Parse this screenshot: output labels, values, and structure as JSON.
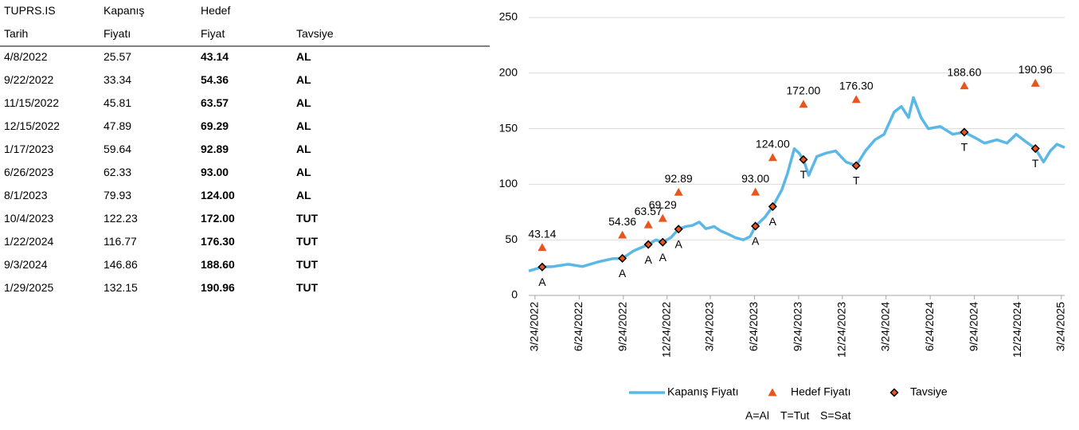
{
  "table": {
    "header_top": [
      "TUPRS.IS",
      "Kapanış",
      "Hedef"
    ],
    "header": [
      "Tarih",
      "Fiyatı",
      "Fiyat",
      "Tavsiye"
    ],
    "rows": [
      [
        "4/8/2022",
        "25.57",
        "43.14",
        "AL"
      ],
      [
        "9/22/2022",
        "33.34",
        "54.36",
        "AL"
      ],
      [
        "11/15/2022",
        "45.81",
        "63.57",
        "AL"
      ],
      [
        "12/15/2022",
        "47.89",
        "69.29",
        "AL"
      ],
      [
        "1/17/2023",
        "59.64",
        "92.89",
        "AL"
      ],
      [
        "6/26/2023",
        "62.33",
        "93.00",
        "AL"
      ],
      [
        "8/1/2023",
        "79.93",
        "124.00",
        "AL"
      ],
      [
        "10/4/2023",
        "122.23",
        "172.00",
        "TUT"
      ],
      [
        "1/22/2024",
        "116.77",
        "176.30",
        "TUT"
      ],
      [
        "9/3/2024",
        "146.86",
        "188.60",
        "TUT"
      ],
      [
        "1/29/2025",
        "132.15",
        "190.96",
        "TUT"
      ]
    ]
  },
  "chart_data": {
    "type": "line",
    "xlim": [
      "3/11/2022",
      "3/31/2025"
    ],
    "xticks": [
      "3/24/2022",
      "6/24/2022",
      "9/24/2022",
      "12/24/2022",
      "3/24/2023",
      "6/24/2023",
      "9/24/2023",
      "12/24/2023",
      "3/24/2024",
      "6/24/2024",
      "9/24/2024",
      "12/24/2024",
      "3/24/2025"
    ],
    "ylim": [
      0,
      250
    ],
    "yticks": [
      0,
      50,
      100,
      150,
      200,
      250
    ],
    "grid": true,
    "legend": "bottom",
    "series": [
      {
        "name": "Kapanış Fiyatı",
        "color": "#5bb8e6",
        "x": [
          "3/11/2022",
          "4/8/2022",
          "5/1/2022",
          "6/1/2022",
          "7/1/2022",
          "8/1/2022",
          "9/1/2022",
          "9/22/2022",
          "10/15/2022",
          "11/15/2022",
          "12/1/2022",
          "12/15/2022",
          "1/1/2023",
          "1/17/2023",
          "2/1/2023",
          "2/15/2023",
          "3/1/2023",
          "3/15/2023",
          "4/1/2023",
          "4/15/2023",
          "5/1/2023",
          "5/15/2023",
          "6/1/2023",
          "6/15/2023",
          "6/26/2023",
          "7/15/2023",
          "8/1/2023",
          "8/20/2023",
          "9/1/2023",
          "9/15/2023",
          "9/25/2023",
          "10/4/2023",
          "10/15/2023",
          "11/1/2023",
          "11/20/2023",
          "12/10/2023",
          "1/1/2024",
          "1/22/2024",
          "2/10/2024",
          "3/1/2024",
          "3/20/2024",
          "4/10/2024",
          "4/25/2024",
          "5/10/2024",
          "5/20/2024",
          "6/5/2024",
          "6/20/2024",
          "7/15/2024",
          "8/10/2024",
          "9/3/2024",
          "9/25/2024",
          "10/15/2024",
          "11/10/2024",
          "12/1/2024",
          "12/20/2024",
          "1/10/2025",
          "1/29/2025",
          "2/15/2025",
          "3/1/2025",
          "3/15/2025",
          "3/31/2025"
        ],
        "values": [
          22,
          25.57,
          26,
          28,
          26,
          30,
          33,
          33.34,
          40,
          45.81,
          50,
          47.89,
          52,
          59.64,
          62,
          63,
          66,
          60,
          62,
          58,
          55,
          52,
          50,
          53,
          62.33,
          70,
          79.93,
          95,
          110,
          132,
          128,
          122.23,
          108,
          125,
          128,
          130,
          120,
          116.77,
          130,
          140,
          145,
          165,
          170,
          160,
          178,
          160,
          150,
          152,
          145,
          146.86,
          142,
          137,
          140,
          137,
          145,
          138,
          132.15,
          120,
          130,
          136,
          133
        ]
      },
      {
        "name": "Hedef Fiyatı",
        "color": "#e8561e",
        "x": [
          "4/8/2022",
          "9/22/2022",
          "11/15/2022",
          "12/15/2022",
          "1/17/2023",
          "6/26/2023",
          "8/1/2023",
          "10/4/2023",
          "1/22/2024",
          "9/3/2024",
          "1/29/2025"
        ],
        "values": [
          43.14,
          54.36,
          63.57,
          69.29,
          92.89,
          93,
          124,
          172,
          176.3,
          188.6,
          190.96
        ],
        "value_labels": [
          "43.14",
          "54.36",
          "63.57",
          "69.29",
          "92.89",
          "93.00",
          "124.00",
          "172.00",
          "176.30",
          "188.60",
          "190.96"
        ]
      },
      {
        "name": "Tavsiye",
        "color": "#000000",
        "x": [
          "4/8/2022",
          "9/22/2022",
          "11/15/2022",
          "12/15/2022",
          "1/17/2023",
          "6/26/2023",
          "8/1/2023",
          "10/4/2023",
          "1/22/2024",
          "9/3/2024",
          "1/29/2025"
        ],
        "values": [
          25.57,
          33.34,
          45.81,
          47.89,
          59.64,
          62.33,
          79.93,
          122.23,
          116.77,
          146.86,
          132.15
        ],
        "marker_labels": [
          "A",
          "A",
          "A",
          "A",
          "A",
          "A",
          "A",
          "T",
          "T",
          "T",
          "T"
        ]
      }
    ],
    "footnote": [
      "A=Al",
      "T=Tut",
      "S=Sat"
    ]
  }
}
